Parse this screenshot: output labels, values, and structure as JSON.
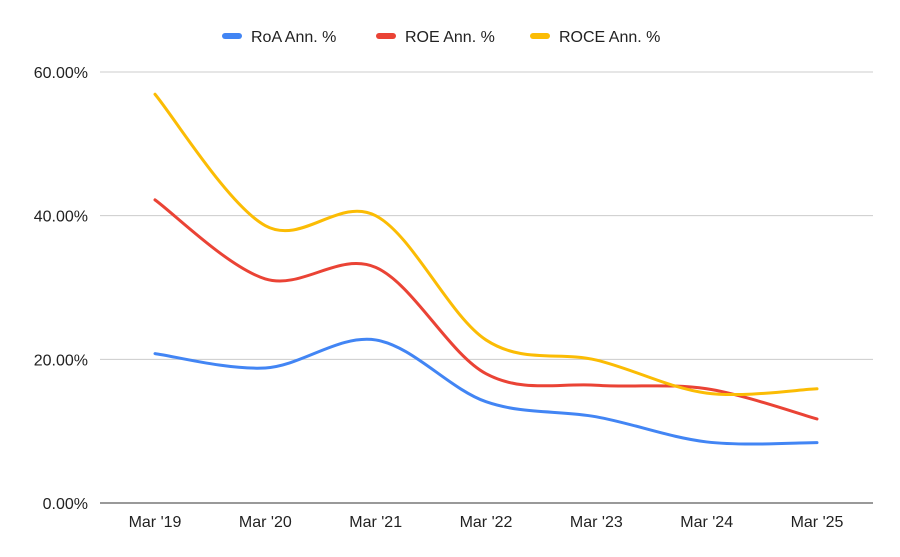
{
  "chart_data": {
    "type": "line",
    "title": "",
    "xlabel": "",
    "ylabel": "",
    "categories": [
      "Mar '19",
      "Mar '20",
      "Mar '21",
      "Mar '22",
      "Mar '23",
      "Mar '24",
      "Mar '25"
    ],
    "y_ticks": [
      "0.00%",
      "20.00%",
      "40.00%",
      "60.00%"
    ],
    "ylim": [
      0,
      60
    ],
    "grid": true,
    "smooth": true,
    "legend_position": "top",
    "series": [
      {
        "name": "RoA Ann. %",
        "color": "#4285f4",
        "values": [
          20.8,
          18.8,
          22.7,
          14.1,
          12.0,
          8.5,
          8.4
        ]
      },
      {
        "name": "ROE Ann. %",
        "color": "#ea4335",
        "values": [
          42.2,
          31.2,
          32.8,
          18.0,
          16.4,
          15.9,
          11.7
        ]
      },
      {
        "name": "ROCE Ann. %",
        "color": "#fbbc04",
        "values": [
          56.9,
          38.6,
          40.0,
          22.7,
          19.9,
          15.3,
          15.9
        ]
      }
    ]
  }
}
